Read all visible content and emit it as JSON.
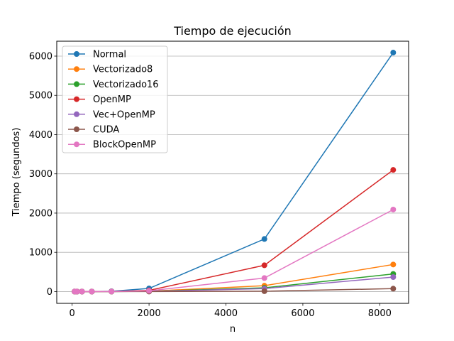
{
  "chart_data": {
    "type": "line",
    "title": "Tiempo de ejecución",
    "xlabel": "n",
    "ylabel": "Tiempo (segundos)",
    "xlim": [
      -400,
      8750
    ],
    "ylim": [
      -300,
      6380
    ],
    "xticks": [
      0,
      2000,
      4000,
      6000,
      8000
    ],
    "yticks": [
      0,
      1000,
      2000,
      3000,
      4000,
      5000,
      6000
    ],
    "grid": "horizontal",
    "legend_position": "top-left",
    "x": [
      64,
      128,
      256,
      512,
      1024,
      2000,
      5000,
      8350
    ],
    "series": [
      {
        "name": "Normal",
        "color": "#1f77b4",
        "values": [
          0,
          0,
          0,
          1,
          8,
          80,
          1340,
          6090
        ]
      },
      {
        "name": "Vectorizado8",
        "color": "#ff7f0e",
        "values": [
          0,
          0,
          0,
          0,
          1,
          9,
          150,
          690
        ]
      },
      {
        "name": "Vectorizado16",
        "color": "#2ca02c",
        "values": [
          0,
          0,
          0,
          0,
          1,
          6,
          95,
          450
        ]
      },
      {
        "name": "OpenMP",
        "color": "#d62728",
        "values": [
          0,
          0,
          0,
          0,
          4,
          30,
          670,
          3100
        ]
      },
      {
        "name": "Vec+OpenMP",
        "color": "#9467bd",
        "values": [
          0,
          0,
          0,
          0,
          1,
          5,
          75,
          370
        ]
      },
      {
        "name": "CUDA",
        "color": "#8c564b",
        "values": [
          0,
          0,
          0,
          0,
          0,
          1,
          10,
          75
        ]
      },
      {
        "name": "BlockOpenMP",
        "color": "#e377c2",
        "values": [
          0,
          0,
          0,
          0,
          2,
          20,
          345,
          2090
        ]
      }
    ]
  }
}
